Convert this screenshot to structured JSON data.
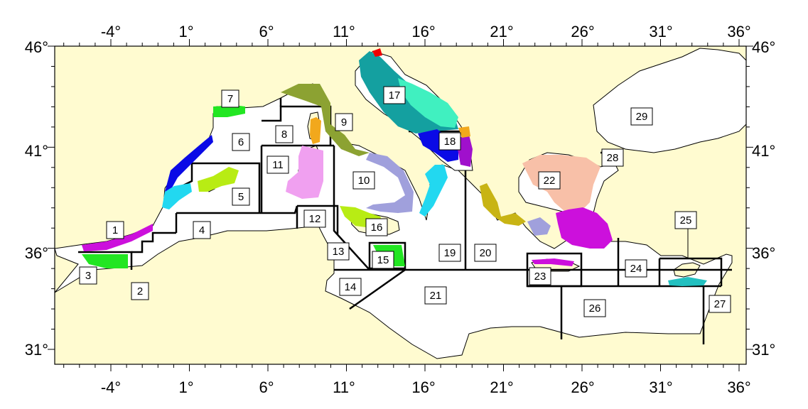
{
  "map": {
    "background_color": "#fffbd0",
    "sea_color": "#ffffff",
    "lon_labels": [
      "-4°",
      "1°",
      "6°",
      "11°",
      "16°",
      "21°",
      "26°",
      "31°",
      "36°"
    ],
    "lat_labels": [
      "46°",
      "41°",
      "36°",
      "31°"
    ],
    "area_labels": [
      "1",
      "2",
      "3",
      "4",
      "5",
      "6",
      "7",
      "8",
      "9",
      "10",
      "11",
      "12",
      "13",
      "14",
      "15",
      "16",
      "17",
      "18",
      "19",
      "20",
      "21",
      "22",
      "23",
      "24",
      "25",
      "26",
      "27",
      "28",
      "29"
    ],
    "cluster_colors": {
      "green": "#22e622",
      "blue": "#0a0ae6",
      "cyan": "#22d8f0",
      "lime": "#b8ec14",
      "olive": "#8ca232",
      "orange": "#f2a81c",
      "pink": "#f0a0f0",
      "lavender": "#a0a0dc",
      "magenta": "#cc10dc",
      "purple": "#a010cc",
      "teal": "#14a0a0",
      "aqua": "#40f0c0",
      "mustard": "#c8b414",
      "salmon": "#f8c0a8",
      "red": "#f00000"
    }
  }
}
